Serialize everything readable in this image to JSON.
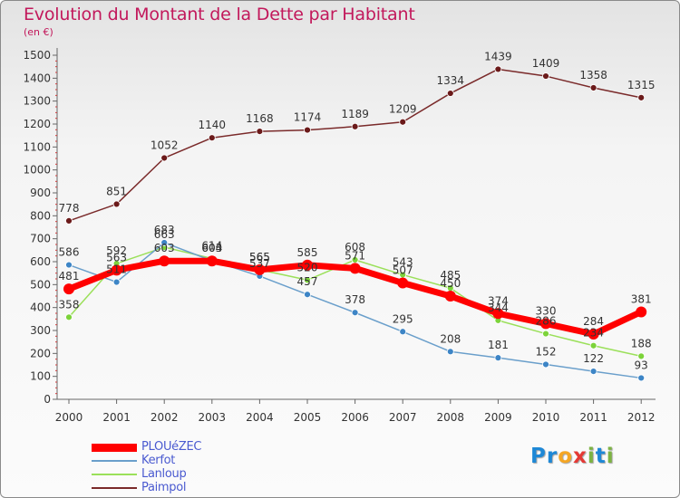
{
  "title": "Evolution du Montant de la Dette par Habitant",
  "unit_label": "(en €)",
  "logo": {
    "text": "Proxiti",
    "letters": [
      {
        "ch": "P",
        "color": "#1e88d6"
      },
      {
        "ch": "r",
        "color": "#1e88d6"
      },
      {
        "ch": "o",
        "color": "#f5a623"
      },
      {
        "ch": "x",
        "color": "#e53935"
      },
      {
        "ch": "i",
        "color": "#7cb342"
      },
      {
        "ch": "t",
        "color": "#1e88d6"
      },
      {
        "ch": "i",
        "color": "#7cb342"
      }
    ]
  },
  "chart_data": {
    "type": "line",
    "title": "Evolution du Montant de la Dette par Habitant",
    "subtitle": "(en €)",
    "x": [
      "2000",
      "2001",
      "2002",
      "2003",
      "2004",
      "2005",
      "2006",
      "2007",
      "2008",
      "2009",
      "2010",
      "2011",
      "2012"
    ],
    "ylim": [
      0,
      1500
    ],
    "yticks": [
      0,
      100,
      200,
      300,
      400,
      500,
      600,
      700,
      800,
      900,
      1000,
      1100,
      1200,
      1300,
      1400,
      1500
    ],
    "grid": false,
    "legend_position": "bottom-left",
    "series": [
      {
        "name": "PLOUéZEC",
        "color": "#ff0000",
        "label_color": "#ff1a1a",
        "marker": "#ff0000",
        "width": 7,
        "radius": 6,
        "values": [
          481,
          563,
          603,
          603,
          565,
          585,
          571,
          507,
          450,
          374,
          330,
          284,
          381
        ]
      },
      {
        "name": "Kerfot",
        "color": "#6a9fcb",
        "label_color": "#6a9fcb",
        "marker": "#3d85c6",
        "width": 1.5,
        "radius": 3.5,
        "values": [
          586,
          511,
          683,
          604,
          537,
          457,
          378,
          295,
          208,
          181,
          152,
          122,
          93
        ]
      },
      {
        "name": "Lanloup",
        "color": "#9be05a",
        "label_color": "#9be05a",
        "marker": "#7cd33a",
        "width": 1.5,
        "radius": 3.5,
        "values": [
          358,
          592,
          663,
          614,
          565,
          520,
          608,
          543,
          485,
          344,
          286,
          234,
          188
        ]
      },
      {
        "name": "Paimpol",
        "color": "#7a2a2a",
        "label_color": "#7a2a2a",
        "marker": "#6b1a1a",
        "width": 1.5,
        "radius": 3.5,
        "values": [
          778,
          851,
          1052,
          1140,
          1168,
          1174,
          1189,
          1209,
          1334,
          1439,
          1409,
          1358,
          1315
        ]
      }
    ]
  }
}
